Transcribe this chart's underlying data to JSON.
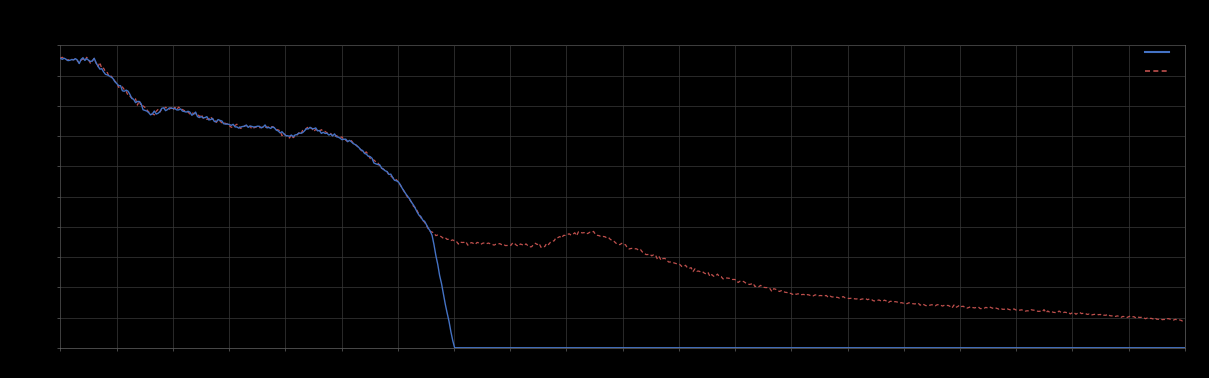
{
  "background_color": "#000000",
  "plot_bg_color": "#000000",
  "grid_color": "#3a3a3a",
  "blue_color": "#4472C4",
  "red_color": "#C0504D",
  "xlim": [
    0,
    100
  ],
  "ylim": [
    0,
    1
  ],
  "figsize": [
    12.09,
    3.78
  ],
  "dpi": 100,
  "spine_color": "#666666",
  "tick_color": "#666666",
  "grid_nx": 20,
  "grid_ny": 10
}
